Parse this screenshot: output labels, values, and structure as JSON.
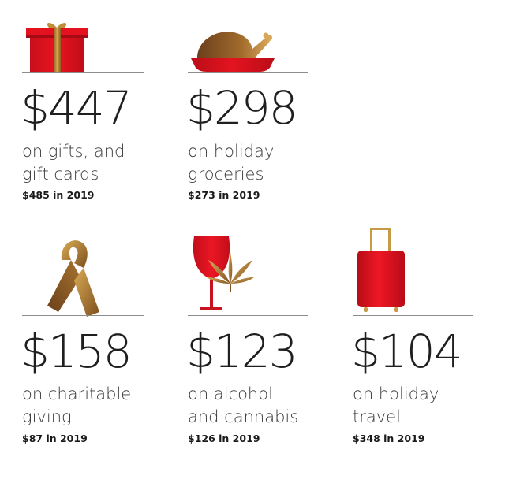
{
  "colors": {
    "red": "#e00b1b",
    "gold": "#c79a3c",
    "text": "#1f1f1f",
    "rule": "#8d8d8d"
  },
  "stats": [
    {
      "icon": "gift-icon",
      "amount": "$447",
      "label_line1": "on gifts, and",
      "label_line2": "gift cards",
      "prior": "$485 in 2019"
    },
    {
      "icon": "roast-turkey-icon",
      "amount": "$298",
      "label_line1": "on holiday",
      "label_line2": "groceries",
      "prior": "$273 in 2019"
    },
    {
      "icon": "ribbon-icon",
      "amount": "$158",
      "label_line1": "on charitable",
      "label_line2": "giving",
      "prior": "$87 in 2019"
    },
    {
      "icon": "wine-cannabis-icon",
      "amount": "$123",
      "label_line1": "on alcohol",
      "label_line2": "and cannabis",
      "prior": "$126 in 2019"
    },
    {
      "icon": "suitcase-icon",
      "amount": "$104",
      "label_line1": "on holiday",
      "label_line2": "travel",
      "prior": "$348 in 2019"
    }
  ]
}
